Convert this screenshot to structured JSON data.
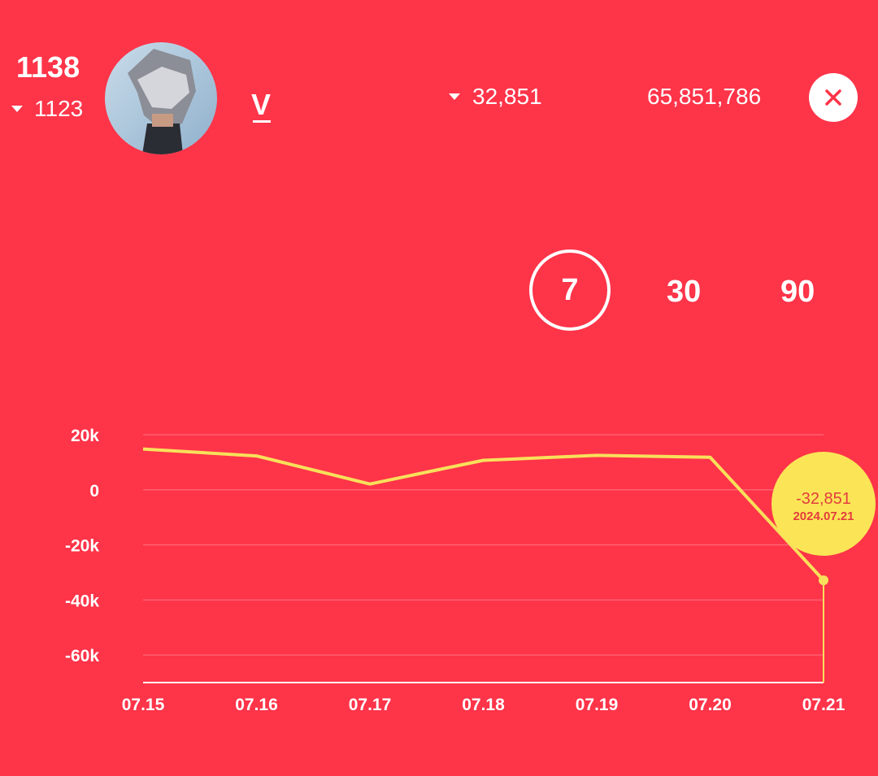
{
  "header": {
    "rank_current": "1138",
    "rank_previous": "1123",
    "artist_name": "V",
    "daily_change": "32,851",
    "total_count": "65,851,786",
    "avatar_icon": "artist-photo",
    "close_icon": "close-icon"
  },
  "range_tabs": [
    {
      "label": "7",
      "selected": true
    },
    {
      "label": "30",
      "selected": false
    },
    {
      "label": "90",
      "selected": false
    }
  ],
  "colors": {
    "background": "#fe3449",
    "line": "#f8e05a",
    "tooltip": "#fbe556",
    "tooltip_text": "#e23d3d"
  },
  "chart_data": {
    "type": "line",
    "categories": [
      "07.15",
      "07.16",
      "07.17",
      "07.18",
      "07.19",
      "07.20",
      "07.21"
    ],
    "values": [
      14800,
      12300,
      2100,
      10700,
      12500,
      11800,
      -32851
    ],
    "y_ticks": [
      "20k",
      "0",
      "-20k",
      "-40k",
      "-60k"
    ],
    "ylim": [
      -70000,
      20000
    ],
    "grid": true,
    "tooltip": {
      "value": "-32,851",
      "date": "2024.07.21"
    }
  }
}
